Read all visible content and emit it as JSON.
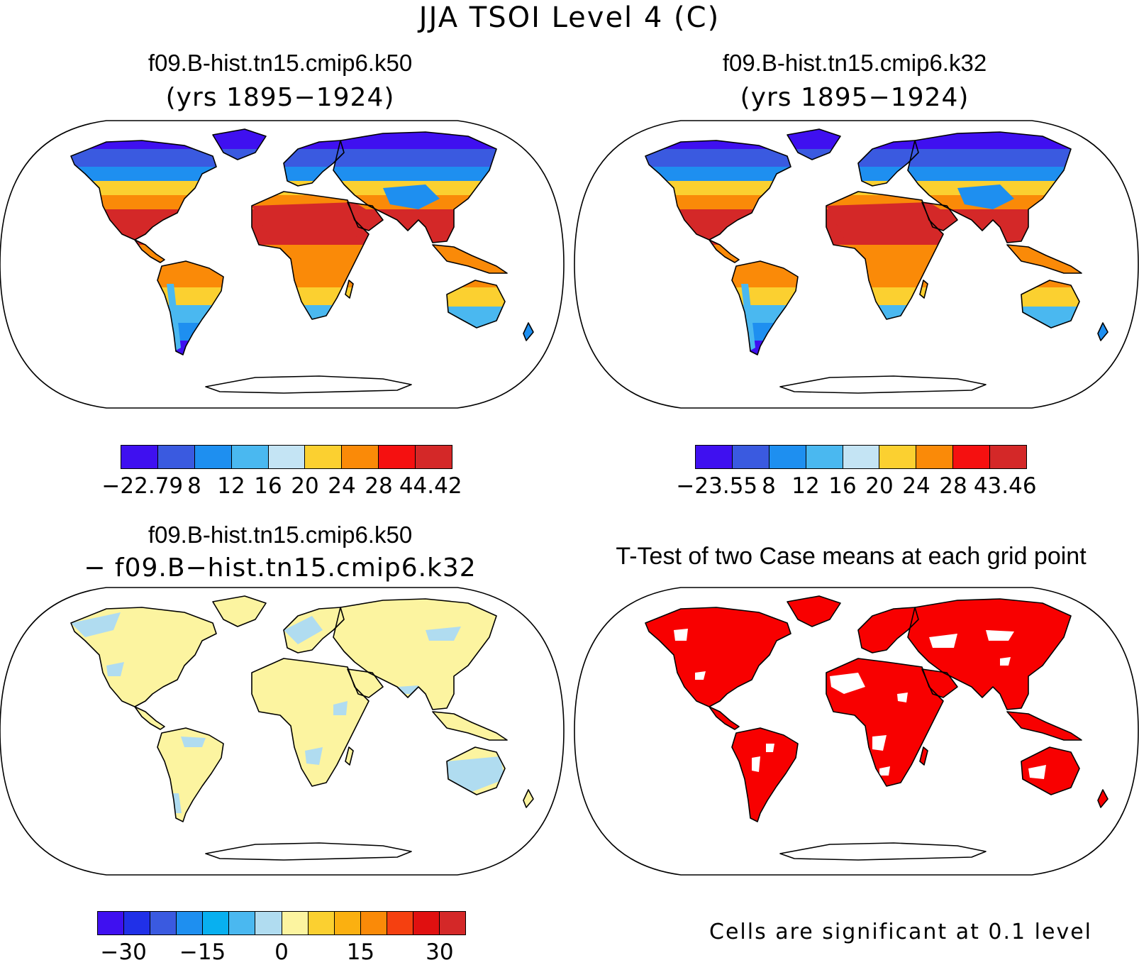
{
  "title": "JJA TSOI Level 4 (C)",
  "panels": {
    "top_left": {
      "case": "f09.B-hist.tn15.cmip6.k50",
      "years": "(yrs 1895−1924)"
    },
    "top_right": {
      "case": "f09.B-hist.tn15.cmip6.k32",
      "years": "(yrs 1895−1924)"
    },
    "bottom_left": {
      "case": "f09.B-hist.tn15.cmip6.k50",
      "minus_case": "− f09.B−hist.tn15.cmip6.k32"
    },
    "bottom_right": {
      "title": "T-Test of two Case means at each grid point",
      "note": "Cells are significant at 0.1 level"
    }
  },
  "colorbars": {
    "top_left": {
      "colors": [
        "#3f10f0",
        "#3a5ae0",
        "#1e8ff0",
        "#4ab8f0",
        "#c4e4f4",
        "#fbd030",
        "#fa8a08",
        "#f51010",
        "#d42828"
      ],
      "labels": [
        "−22.79",
        "8",
        "12",
        "16",
        "20",
        "24",
        "28",
        "44.42"
      ]
    },
    "top_right": {
      "colors": [
        "#3f10f0",
        "#3a5ae0",
        "#1e8ff0",
        "#4ab8f0",
        "#c4e4f4",
        "#fbd030",
        "#fa8a08",
        "#f51010",
        "#d42828"
      ],
      "labels": [
        "−23.55",
        "8",
        "12",
        "16",
        "20",
        "24",
        "28",
        "43.46"
      ]
    },
    "diff": {
      "colors": [
        "#3f10f0",
        "#2030e8",
        "#3a5ae0",
        "#1e8ff0",
        "#08b0f0",
        "#4ab8f0",
        "#b0dcf0",
        "#fcf4a0",
        "#fbd030",
        "#fbb010",
        "#fa8a08",
        "#f54010",
        "#e01010",
        "#d42828"
      ],
      "labels": [
        "−30",
        "−15",
        "0",
        "15",
        "30"
      ]
    }
  },
  "map_colors": {
    "top_left": {
      "north": "#3a5ae0",
      "midnorth": "#1e8ff0",
      "mid": "#fbd030",
      "warm": "#fa8a08",
      "hot": "#d42828",
      "south": "#4ab8f0",
      "plateau": "#1e8ff0",
      "deep": "#3f10f0"
    },
    "top_right": {
      "north": "#3a5ae0",
      "midnorth": "#1e8ff0",
      "mid": "#fbd030",
      "warm": "#fa8a08",
      "hot": "#d42828",
      "south": "#4ab8f0",
      "plateau": "#1e8ff0",
      "deep": "#3f10f0"
    },
    "bottom_left": {
      "land": "#fcf4a0",
      "cool": "#b0dcf0"
    },
    "bottom_right": {
      "land": "#f80000",
      "gap": "#ffffff"
    }
  }
}
